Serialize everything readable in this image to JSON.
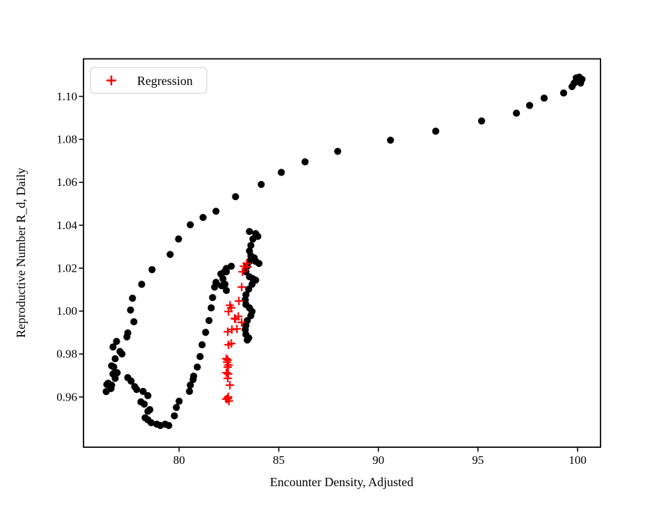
{
  "figure": {
    "background": "#ffffff",
    "frame_color": "#000000",
    "legend_border_color": "#d5d5d5"
  },
  "chart_data": {
    "type": "scatter",
    "title": "",
    "xlabel": "Encounter Density, Adjusted",
    "ylabel": "Reproductive Number R_d, Daily",
    "xlim": [
      75.2,
      101.15
    ],
    "ylim": [
      0.9366,
      1.1175
    ],
    "grid": false,
    "x_ticks": {
      "values": [
        80,
        85,
        90,
        95,
        100
      ],
      "labels": [
        "80",
        "85",
        "90",
        "95",
        "100"
      ]
    },
    "y_ticks": {
      "values": [
        0.96,
        0.98,
        1.0,
        1.02,
        1.04,
        1.06,
        1.08,
        1.1
      ],
      "labels": [
        "0.96",
        "0.98",
        "1.00",
        "1.02",
        "1.04",
        "1.06",
        "1.08",
        "1.10"
      ]
    },
    "legend": {
      "position": "upper left",
      "entries": [
        {
          "label": "Regression",
          "marker": "plus",
          "color": "#ff0000"
        }
      ]
    },
    "series": [
      {
        "name": "trajectory",
        "marker": "circle",
        "color": "#000000",
        "size": 5.1,
        "points": [
          [
            100.08,
            1.109
          ],
          [
            100.22,
            1.108
          ],
          [
            100.15,
            1.1062
          ],
          [
            99.93,
            1.1086
          ],
          [
            99.83,
            1.1062
          ],
          [
            99.72,
            1.1046
          ],
          [
            99.3,
            1.1016
          ],
          [
            98.32,
            1.0992
          ],
          [
            97.59,
            1.0958
          ],
          [
            96.93,
            1.0922
          ],
          [
            95.18,
            1.0886
          ],
          [
            92.88,
            1.0838
          ],
          [
            90.61,
            1.0796
          ],
          [
            87.96,
            1.0744
          ],
          [
            86.32,
            1.0695
          ],
          [
            85.13,
            1.0646
          ],
          [
            84.12,
            1.059
          ],
          [
            82.83,
            1.0533
          ],
          [
            81.85,
            1.0465
          ],
          [
            81.2,
            1.0436
          ],
          [
            80.56,
            1.0402
          ],
          [
            79.97,
            1.0336
          ],
          [
            79.55,
            1.0264
          ],
          [
            78.64,
            1.0193
          ],
          [
            78.12,
            1.0125
          ],
          [
            77.66,
            1.006
          ],
          [
            77.56,
            1.0005
          ],
          [
            77.73,
            0.995
          ],
          [
            77.42,
            0.9898
          ],
          [
            77.38,
            0.988
          ],
          [
            76.86,
            0.9859
          ],
          [
            76.68,
            0.9833
          ],
          [
            77.03,
            0.9812
          ],
          [
            77.13,
            0.98
          ],
          [
            76.79,
            0.9778
          ],
          [
            76.61,
            0.9745
          ],
          [
            76.72,
            0.9739
          ],
          [
            76.89,
            0.9713
          ],
          [
            76.68,
            0.9707
          ],
          [
            76.79,
            0.9687
          ],
          [
            76.44,
            0.9664
          ],
          [
            76.61,
            0.9655
          ],
          [
            76.37,
            0.9658
          ],
          [
            76.58,
            0.9639
          ],
          [
            76.34,
            0.9625
          ],
          [
            77.42,
            0.969
          ],
          [
            77.59,
            0.9674
          ],
          [
            77.77,
            0.9648
          ],
          [
            77.87,
            0.9635
          ],
          [
            78.19,
            0.9626
          ],
          [
            78.43,
            0.9606
          ],
          [
            78.08,
            0.9577
          ],
          [
            78.25,
            0.9567
          ],
          [
            78.53,
            0.9541
          ],
          [
            78.43,
            0.9533
          ],
          [
            78.29,
            0.9503
          ],
          [
            78.43,
            0.9494
          ],
          [
            78.6,
            0.948
          ],
          [
            78.88,
            0.9473
          ],
          [
            79.06,
            0.9467
          ],
          [
            79.3,
            0.9473
          ],
          [
            79.48,
            0.9467
          ],
          [
            79.76,
            0.9512
          ],
          [
            79.86,
            0.9551
          ],
          [
            80.0,
            0.958
          ],
          [
            80.52,
            0.9626
          ],
          [
            80.56,
            0.9655
          ],
          [
            80.7,
            0.9681
          ],
          [
            80.73,
            0.9697
          ],
          [
            80.91,
            0.9739
          ],
          [
            81.05,
            0.9788
          ],
          [
            81.15,
            0.9843
          ],
          [
            81.33,
            0.9901
          ],
          [
            81.5,
            0.9956
          ],
          [
            81.61,
            1.0015
          ],
          [
            81.68,
            1.0063
          ],
          [
            81.78,
            1.0112
          ],
          [
            81.85,
            1.0134
          ],
          [
            82.09,
            1.0173
          ],
          [
            82.27,
            1.0183
          ],
          [
            82.37,
            1.0199
          ],
          [
            82.62,
            1.0209
          ],
          [
            82.37,
            1.0183
          ],
          [
            82.2,
            1.0151
          ],
          [
            82.13,
            1.0118
          ],
          [
            82.3,
            1.0125
          ],
          [
            82.37,
            1.0096
          ],
          [
            83.53,
            1.0371
          ],
          [
            83.84,
            1.0361
          ],
          [
            83.95,
            1.0348
          ],
          [
            83.7,
            1.0336
          ],
          [
            83.6,
            1.0306
          ],
          [
            83.53,
            1.028
          ],
          [
            83.6,
            1.0258
          ],
          [
            83.77,
            1.0248
          ],
          [
            84.01,
            1.0222
          ],
          [
            83.84,
            1.0232
          ],
          [
            83.53,
            1.0232
          ],
          [
            83.42,
            1.0209
          ],
          [
            83.35,
            1.0183
          ],
          [
            83.53,
            1.016
          ],
          [
            83.7,
            1.0151
          ],
          [
            83.84,
            1.0144
          ],
          [
            83.66,
            1.0125
          ],
          [
            83.49,
            1.0102
          ],
          [
            83.35,
            1.0076
          ],
          [
            83.32,
            1.0053
          ],
          [
            83.35,
            1.0031
          ],
          [
            83.53,
            1.0015
          ],
          [
            83.66,
            0.9998
          ],
          [
            83.6,
            0.9979
          ],
          [
            83.42,
            0.9956
          ],
          [
            83.35,
            0.9933
          ],
          [
            83.32,
            0.9914
          ],
          [
            83.35,
            0.9891
          ],
          [
            83.49,
            0.9875
          ],
          [
            83.42,
            0.9865
          ]
        ]
      },
      {
        "name": "Regression",
        "marker": "plus",
        "color": "#ff0000",
        "size": 6,
        "points": [
          [
            83.39,
            1.0222
          ],
          [
            83.25,
            1.0209
          ],
          [
            83.42,
            1.0206
          ],
          [
            83.18,
            1.0183
          ],
          [
            83.14,
            1.0112
          ],
          [
            83.0,
            1.0047
          ],
          [
            82.55,
            1.0027
          ],
          [
            82.62,
            1.0015
          ],
          [
            82.48,
            0.9998
          ],
          [
            82.97,
            0.9975
          ],
          [
            82.83,
            0.9963
          ],
          [
            83.14,
            0.9947
          ],
          [
            82.79,
            0.9966
          ],
          [
            82.9,
            0.9917
          ],
          [
            82.65,
            0.9914
          ],
          [
            82.44,
            0.9904
          ],
          [
            82.62,
            0.9849
          ],
          [
            82.48,
            0.9843
          ],
          [
            82.37,
            0.9778
          ],
          [
            82.44,
            0.9772
          ],
          [
            82.41,
            0.9762
          ],
          [
            82.48,
            0.9749
          ],
          [
            82.44,
            0.9739
          ],
          [
            82.37,
            0.9713
          ],
          [
            82.46,
            0.9707
          ],
          [
            82.44,
            0.9687
          ],
          [
            82.55,
            0.9655
          ],
          [
            82.37,
            0.959
          ],
          [
            82.44,
            0.9593
          ],
          [
            82.5,
            0.9581
          ],
          [
            82.46,
            0.96
          ]
        ]
      }
    ]
  }
}
